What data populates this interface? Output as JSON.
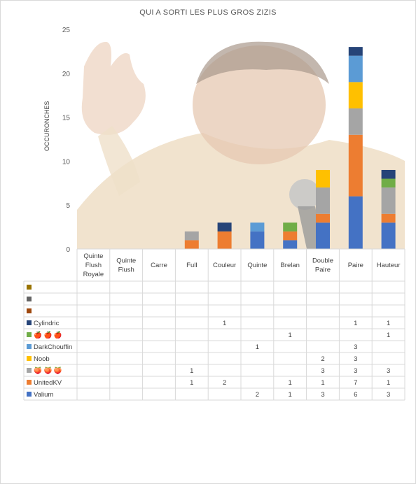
{
  "colors": {
    "Valium": "#4472c4",
    "UnitedKV": "#ed7d31",
    "grey_series": "#a5a5a5",
    "Noob": "#ffc000",
    "DarkChouffin": "#5b9bd5",
    "green_series": "#70ad47",
    "Cylindric": "#264478",
    "blank1": "#9e480e",
    "blank2": "#636363",
    "blank3": "#997300"
  },
  "chart_data": {
    "type": "bar",
    "stacked": true,
    "title": "QUI A SORTI LES PLUS GROS ZIZIS",
    "ylabel": "OCCURONCHES",
    "xlabel": "",
    "ylim": [
      0,
      25
    ],
    "yticks": [
      "0",
      "5",
      "10",
      "15",
      "20",
      "25"
    ],
    "categories": [
      "Quinte Flush Royale",
      "Quinte Flush",
      "Carre",
      "Full",
      "Couleur",
      "Quinte",
      "Brelan",
      "Double Paire",
      "Paire",
      "Hauteur"
    ],
    "series": [
      {
        "name": "Valium",
        "values": [
          null,
          null,
          null,
          null,
          null,
          2,
          1,
          3,
          6,
          3
        ]
      },
      {
        "name": "UnitedKV",
        "values": [
          null,
          null,
          null,
          1,
          2,
          null,
          1,
          1,
          7,
          1
        ]
      },
      {
        "name": "🍑 🍑 🍑",
        "values": [
          null,
          null,
          null,
          1,
          null,
          null,
          null,
          3,
          3,
          3
        ]
      },
      {
        "name": "Noob",
        "values": [
          null,
          null,
          null,
          null,
          null,
          null,
          null,
          2,
          3,
          null
        ]
      },
      {
        "name": "DarkChouffin",
        "values": [
          null,
          null,
          null,
          null,
          null,
          1,
          null,
          null,
          3,
          null
        ]
      },
      {
        "name": "🍎 🍎 🍎",
        "values": [
          null,
          null,
          null,
          null,
          null,
          null,
          1,
          null,
          null,
          1
        ]
      },
      {
        "name": "Cylindric",
        "values": [
          null,
          null,
          null,
          null,
          1,
          null,
          null,
          null,
          1,
          1
        ]
      },
      {
        "name": "",
        "values": [
          null,
          null,
          null,
          null,
          null,
          null,
          null,
          null,
          null,
          null
        ]
      },
      {
        "name": "",
        "values": [
          null,
          null,
          null,
          null,
          null,
          null,
          null,
          null,
          null,
          null
        ]
      },
      {
        "name": "",
        "values": [
          null,
          null,
          null,
          null,
          null,
          null,
          null,
          null,
          null,
          null
        ]
      }
    ],
    "grid": false,
    "legend": "data-table"
  }
}
